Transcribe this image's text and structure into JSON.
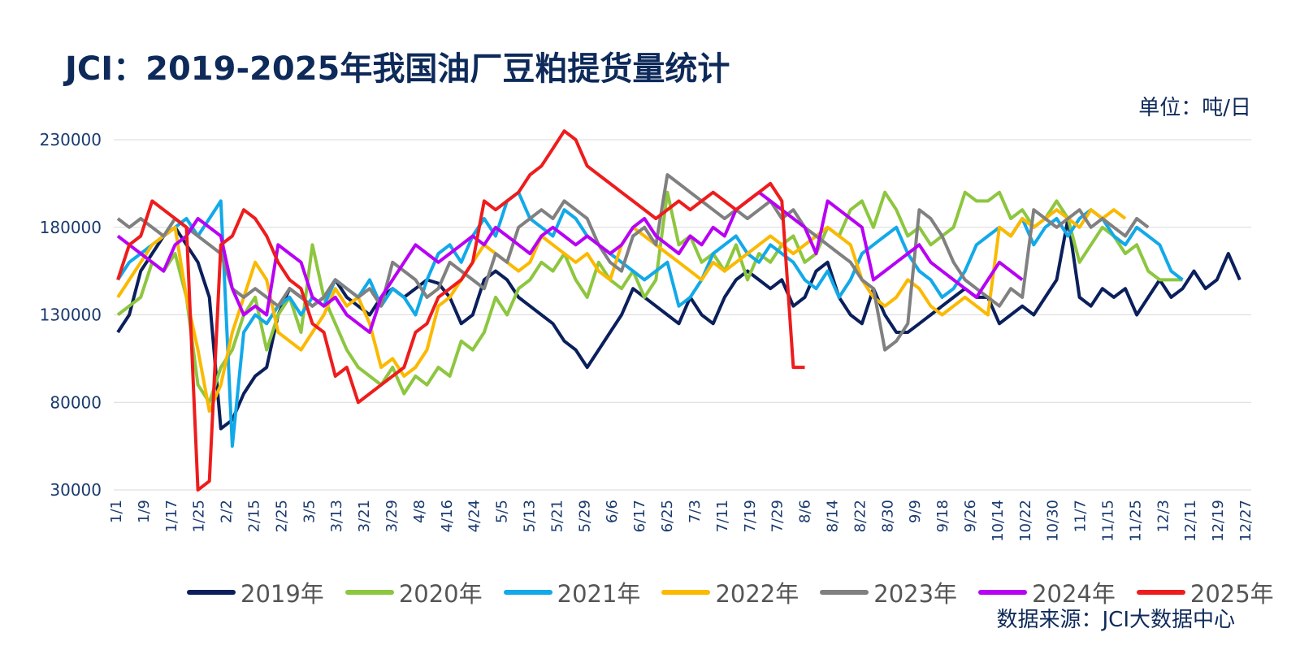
{
  "title": "JCI：2019-2025年我国油厂豆粕提货量统计",
  "unit_label": "单位：吨/日",
  "source_label": "数据来源：JCI大数据中心",
  "colors": {
    "title": "#0e2a5a",
    "grid": "#d9d9d9"
  },
  "chart_data": {
    "type": "line",
    "title": "JCI：2019-2025年我国油厂豆粕提货量统计",
    "xlabel": "",
    "ylabel": "",
    "x_ticks": [
      "1/1",
      "1/9",
      "1/17",
      "1/25",
      "2/2",
      "2/15",
      "2/25",
      "3/5",
      "3/13",
      "3/21",
      "3/29",
      "4/8",
      "4/16",
      "4/24",
      "5/5",
      "5/13",
      "5/21",
      "5/29",
      "6/6",
      "6/17",
      "6/25",
      "7/3",
      "7/11",
      "7/19",
      "7/29",
      "8/6",
      "8/14",
      "8/22",
      "8/30",
      "9/9",
      "9/18",
      "9/26",
      "10/14",
      "10/22",
      "10/30",
      "11/7",
      "11/15",
      "11/25",
      "12/3",
      "12/11",
      "12/19",
      "12/27"
    ],
    "ylim": [
      30000,
      230000
    ],
    "yticks": [
      30000,
      80000,
      130000,
      180000,
      230000
    ],
    "grid": true,
    "legend_position": "bottom",
    "series": [
      {
        "name": "2019年",
        "color": "#0a1f5c",
        "values": [
          120000,
          130000,
          155000,
          165000,
          175000,
          180000,
          170000,
          160000,
          140000,
          65000,
          70000,
          85000,
          95000,
          100000,
          130000,
          145000,
          140000,
          135000,
          140000,
          150000,
          140000,
          135000,
          130000,
          140000,
          145000,
          140000,
          145000,
          150000,
          148000,
          140000,
          125000,
          130000,
          150000,
          155000,
          150000,
          140000,
          135000,
          130000,
          125000,
          115000,
          110000,
          100000,
          110000,
          120000,
          130000,
          145000,
          140000,
          135000,
          130000,
          125000,
          140000,
          130000,
          125000,
          140000,
          150000,
          155000,
          150000,
          145000,
          150000,
          135000,
          140000,
          155000,
          160000,
          140000,
          130000,
          125000,
          145000,
          130000,
          120000,
          120000,
          125000,
          130000,
          135000,
          140000,
          145000,
          140000,
          140000,
          125000,
          130000,
          135000,
          130000,
          140000,
          150000,
          185000,
          140000,
          135000,
          145000,
          140000,
          145000,
          130000,
          140000,
          150000,
          140000,
          145000,
          155000,
          145000,
          150000,
          165000,
          150000
        ]
      },
      {
        "name": "2020年",
        "color": "#8dc63f",
        "values": [
          130000,
          135000,
          140000,
          160000,
          155000,
          165000,
          140000,
          90000,
          80000,
          100000,
          110000,
          130000,
          140000,
          110000,
          130000,
          140000,
          120000,
          170000,
          140000,
          125000,
          110000,
          100000,
          95000,
          90000,
          100000,
          85000,
          95000,
          90000,
          100000,
          95000,
          115000,
          110000,
          120000,
          140000,
          130000,
          145000,
          150000,
          160000,
          155000,
          165000,
          150000,
          140000,
          160000,
          150000,
          145000,
          155000,
          140000,
          150000,
          200000,
          170000,
          175000,
          160000,
          165000,
          155000,
          170000,
          150000,
          165000,
          160000,
          170000,
          175000,
          160000,
          165000,
          180000,
          175000,
          190000,
          195000,
          180000,
          200000,
          190000,
          175000,
          180000,
          170000,
          175000,
          180000,
          200000,
          195000,
          195000,
          200000,
          185000,
          190000,
          180000,
          185000,
          195000,
          185000,
          160000,
          170000,
          180000,
          175000,
          165000,
          170000,
          155000,
          150000,
          150000,
          150000
        ]
      },
      {
        "name": "2021年",
        "color": "#12a9e8",
        "values": [
          150000,
          160000,
          165000,
          170000,
          175000,
          180000,
          185000,
          175000,
          185000,
          195000,
          55000,
          120000,
          130000,
          125000,
          135000,
          140000,
          130000,
          140000,
          135000,
          150000,
          145000,
          140000,
          150000,
          135000,
          145000,
          140000,
          130000,
          150000,
          165000,
          170000,
          160000,
          175000,
          185000,
          175000,
          195000,
          200000,
          185000,
          180000,
          175000,
          190000,
          185000,
          175000,
          170000,
          165000,
          160000,
          155000,
          150000,
          155000,
          160000,
          135000,
          140000,
          150000,
          165000,
          170000,
          175000,
          165000,
          160000,
          170000,
          165000,
          160000,
          150000,
          145000,
          155000,
          140000,
          150000,
          165000,
          170000,
          175000,
          180000,
          165000,
          155000,
          150000,
          140000,
          145000,
          155000,
          170000,
          175000,
          180000,
          175000,
          185000,
          170000,
          180000,
          185000,
          175000,
          185000,
          190000,
          185000,
          175000,
          170000,
          180000,
          175000,
          170000,
          155000,
          150000
        ]
      },
      {
        "name": "2022年",
        "color": "#fbb900",
        "values": [
          140000,
          150000,
          160000,
          170000,
          175000,
          180000,
          140000,
          110000,
          75000,
          90000,
          120000,
          140000,
          160000,
          150000,
          120000,
          115000,
          110000,
          120000,
          130000,
          145000,
          135000,
          140000,
          125000,
          100000,
          105000,
          95000,
          100000,
          110000,
          135000,
          140000,
          150000,
          160000,
          170000,
          165000,
          160000,
          155000,
          160000,
          175000,
          170000,
          165000,
          160000,
          165000,
          155000,
          150000,
          170000,
          180000,
          175000,
          170000,
          165000,
          160000,
          155000,
          150000,
          160000,
          155000,
          160000,
          165000,
          170000,
          175000,
          170000,
          165000,
          170000,
          175000,
          180000,
          175000,
          170000,
          150000,
          140000,
          135000,
          140000,
          150000,
          145000,
          135000,
          130000,
          135000,
          140000,
          135000,
          130000,
          180000,
          175000,
          185000,
          180000,
          185000,
          190000,
          185000,
          180000,
          190000,
          185000,
          190000,
          185000
        ]
      },
      {
        "name": "2023年",
        "color": "#808080",
        "values": [
          185000,
          180000,
          185000,
          180000,
          175000,
          185000,
          180000,
          175000,
          170000,
          165000,
          145000,
          140000,
          145000,
          140000,
          135000,
          145000,
          140000,
          135000,
          140000,
          150000,
          145000,
          140000,
          145000,
          135000,
          160000,
          155000,
          150000,
          140000,
          145000,
          160000,
          155000,
          150000,
          145000,
          165000,
          160000,
          180000,
          185000,
          190000,
          185000,
          195000,
          190000,
          185000,
          170000,
          160000,
          155000,
          175000,
          180000,
          170000,
          210000,
          205000,
          200000,
          195000,
          190000,
          185000,
          190000,
          185000,
          190000,
          195000,
          185000,
          190000,
          180000,
          175000,
          170000,
          165000,
          160000,
          150000,
          145000,
          110000,
          115000,
          125000,
          190000,
          185000,
          175000,
          160000,
          150000,
          145000,
          140000,
          135000,
          145000,
          140000,
          190000,
          185000,
          180000,
          185000,
          190000,
          180000,
          185000,
          180000,
          175000,
          185000,
          180000
        ]
      },
      {
        "name": "2024年",
        "color": "#b700f4",
        "values": [
          175000,
          170000,
          165000,
          160000,
          155000,
          170000,
          175000,
          185000,
          180000,
          175000,
          145000,
          130000,
          135000,
          130000,
          170000,
          165000,
          160000,
          140000,
          135000,
          140000,
          130000,
          125000,
          120000,
          140000,
          150000,
          160000,
          170000,
          165000,
          160000,
          165000,
          170000,
          175000,
          170000,
          180000,
          175000,
          170000,
          165000,
          175000,
          180000,
          175000,
          170000,
          175000,
          170000,
          165000,
          170000,
          180000,
          185000,
          175000,
          170000,
          165000,
          175000,
          170000,
          180000,
          175000,
          190000,
          195000,
          200000,
          195000,
          190000,
          185000,
          180000,
          165000,
          195000,
          190000,
          185000,
          180000,
          150000,
          155000,
          160000,
          165000,
          170000,
          160000,
          155000,
          150000,
          145000,
          140000,
          150000,
          160000,
          155000,
          150000
        ]
      },
      {
        "name": "2025年",
        "color": "#ee1c1c",
        "values": [
          150000,
          170000,
          175000,
          195000,
          190000,
          185000,
          180000,
          30000,
          35000,
          170000,
          175000,
          190000,
          185000,
          175000,
          160000,
          150000,
          145000,
          125000,
          120000,
          95000,
          100000,
          80000,
          85000,
          90000,
          95000,
          100000,
          120000,
          125000,
          140000,
          145000,
          150000,
          160000,
          195000,
          190000,
          195000,
          200000,
          210000,
          215000,
          225000,
          235000,
          230000,
          215000,
          210000,
          205000,
          200000,
          195000,
          190000,
          185000,
          190000,
          195000,
          190000,
          195000,
          200000,
          195000,
          190000,
          195000,
          200000,
          205000,
          195000,
          100000,
          100000
        ]
      }
    ]
  }
}
